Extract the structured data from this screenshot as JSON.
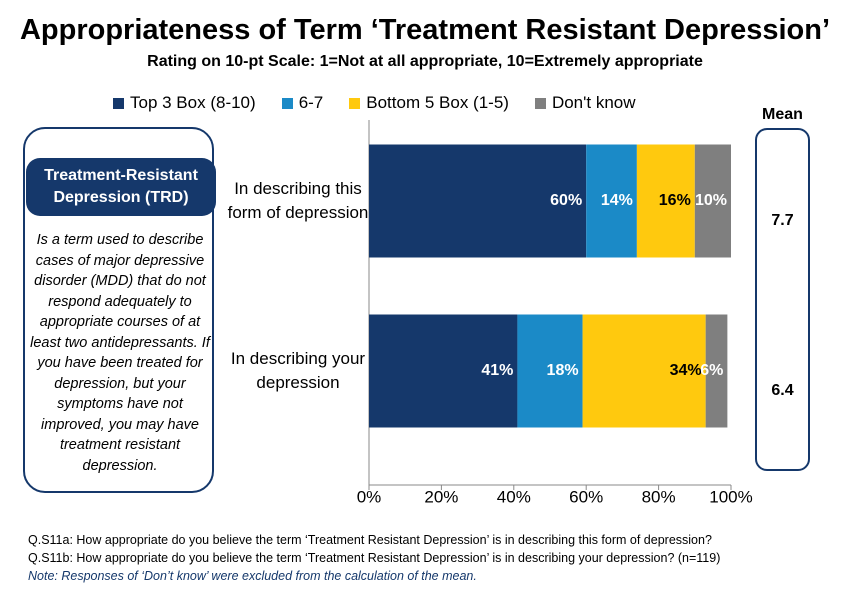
{
  "chart_data": {
    "type": "stacked-barh",
    "title": "Appropriateness of Term ‘Treatment Resistant Depression’",
    "subtitle": "Rating on 10-pt Scale: 1=Not at all appropriate, 10=Extremely appropriate",
    "categories": [
      "In describing this form of depression",
      "In describing your depression"
    ],
    "series": [
      {
        "name": "Top 3 Box (8-10)",
        "color": "#15386b",
        "label_color": "#ffffff",
        "values": [
          60,
          41
        ],
        "value_labels": [
          "60%",
          "41%"
        ]
      },
      {
        "name": "6-7",
        "color": "#1b8ac7",
        "label_color": "#ffffff",
        "values": [
          14,
          18
        ],
        "value_labels": [
          "14%",
          "18%"
        ]
      },
      {
        "name": "Bottom 5 Box (1-5)",
        "color": "#ffc90e",
        "label_color": "#000000",
        "values": [
          16,
          34
        ],
        "value_labels": [
          "16%",
          "34%"
        ]
      },
      {
        "name": "Don't know",
        "color": "#7f7f7f",
        "label_color": "#ffffff",
        "values": [
          10,
          6
        ],
        "value_labels": [
          "10%",
          "6%"
        ]
      }
    ],
    "xlim": [
      0,
      100
    ],
    "xticks": [
      {
        "value": 0,
        "label": "0%"
      },
      {
        "value": 20,
        "label": "20%"
      },
      {
        "value": 40,
        "label": "40%"
      },
      {
        "value": 60,
        "label": "60%"
      },
      {
        "value": 80,
        "label": "80%"
      },
      {
        "value": 100,
        "label": "100%"
      }
    ],
    "mean": {
      "label": "Mean",
      "values": [
        7.7,
        6.4
      ]
    }
  },
  "definition": {
    "heading": "Treatment-Resistant Depression (TRD)",
    "body": "Is a term used to describe cases of major depressive disorder (MDD) that do not respond adequately to appropriate courses of at least two antidepressants. If you have been treated for depression, but your symptoms have not improved, you may have treatment resistant depression."
  },
  "footnotes": [
    "Q.S11a: How appropriate do you believe the term ‘Treatment Resistant Depression’ is in describing this form of depression?",
    "Q.S11b: How appropriate do you believe the term ‘Treatment Resistant Depression’ is in describing your depression? (n=119)",
    "Note: Responses of ‘Don’t know’ were excluded from the calculation of the mean."
  ]
}
